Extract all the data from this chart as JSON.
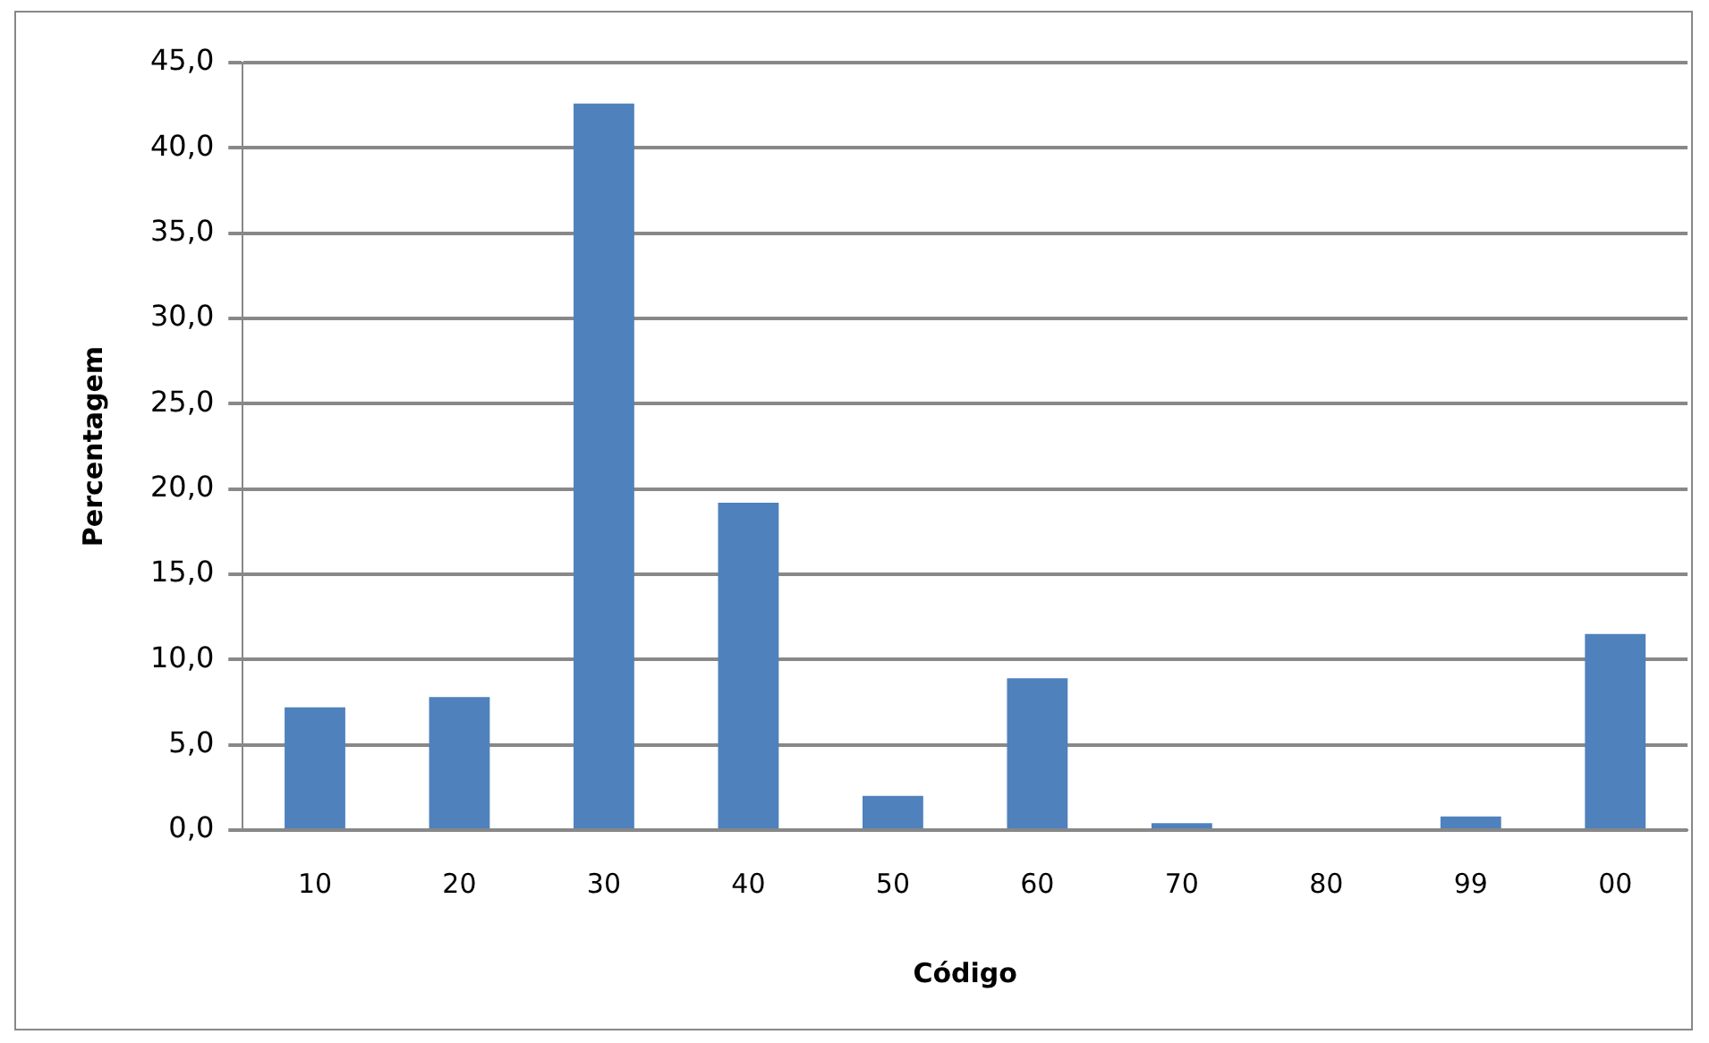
{
  "chart_data": {
    "type": "bar",
    "xlabel": "Código",
    "ylabel": "Percentagem",
    "categories": [
      "10",
      "20",
      "30",
      "40",
      "50",
      "60",
      "70",
      "80",
      "99",
      "00"
    ],
    "values": [
      7.2,
      7.8,
      42.6,
      19.2,
      2.0,
      8.9,
      0.4,
      0,
      0.8,
      11.5
    ],
    "color": "#4f81bd",
    "ylim": [
      0,
      45
    ],
    "yticks": [
      {
        "value": 0,
        "label": "0,0"
      },
      {
        "value": 5,
        "label": "5,0"
      },
      {
        "value": 10,
        "label": "10,0"
      },
      {
        "value": 15,
        "label": "15,0"
      },
      {
        "value": 20,
        "label": "20,0"
      },
      {
        "value": 25,
        "label": "25,0"
      },
      {
        "value": 30,
        "label": "30,0"
      },
      {
        "value": 35,
        "label": "35,0"
      },
      {
        "value": 40,
        "label": "40,0"
      },
      {
        "value": 45,
        "label": "45,0"
      }
    ],
    "grid": "y",
    "legend": false
  }
}
